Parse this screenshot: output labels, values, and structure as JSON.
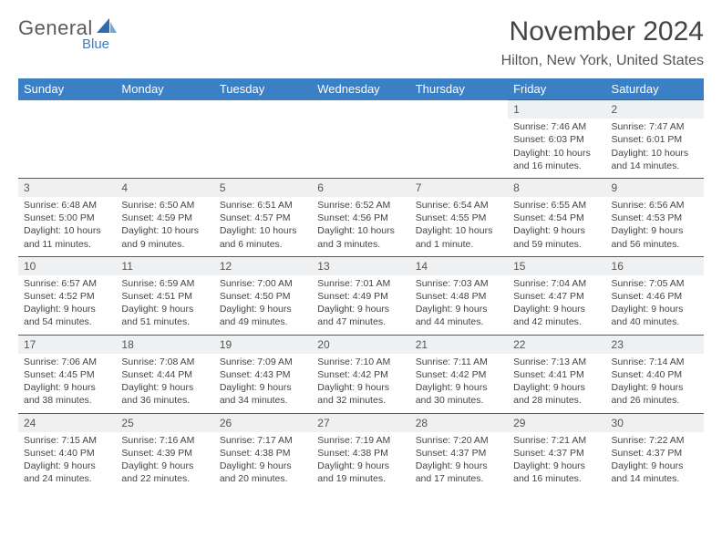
{
  "logo": {
    "text_general": "General",
    "text_blue": "Blue"
  },
  "title": "November 2024",
  "location": "Hilton, New York, United States",
  "header_bg": "#3b7fc4",
  "daynum_bg": "#eef0f2",
  "border_color": "#3b5f90",
  "weekdays": [
    "Sunday",
    "Monday",
    "Tuesday",
    "Wednesday",
    "Thursday",
    "Friday",
    "Saturday"
  ],
  "weeks": [
    [
      null,
      null,
      null,
      null,
      null,
      {
        "n": "1",
        "sunrise": "Sunrise: 7:46 AM",
        "sunset": "Sunset: 6:03 PM",
        "daylight": "Daylight: 10 hours and 16 minutes."
      },
      {
        "n": "2",
        "sunrise": "Sunrise: 7:47 AM",
        "sunset": "Sunset: 6:01 PM",
        "daylight": "Daylight: 10 hours and 14 minutes."
      }
    ],
    [
      {
        "n": "3",
        "sunrise": "Sunrise: 6:48 AM",
        "sunset": "Sunset: 5:00 PM",
        "daylight": "Daylight: 10 hours and 11 minutes."
      },
      {
        "n": "4",
        "sunrise": "Sunrise: 6:50 AM",
        "sunset": "Sunset: 4:59 PM",
        "daylight": "Daylight: 10 hours and 9 minutes."
      },
      {
        "n": "5",
        "sunrise": "Sunrise: 6:51 AM",
        "sunset": "Sunset: 4:57 PM",
        "daylight": "Daylight: 10 hours and 6 minutes."
      },
      {
        "n": "6",
        "sunrise": "Sunrise: 6:52 AM",
        "sunset": "Sunset: 4:56 PM",
        "daylight": "Daylight: 10 hours and 3 minutes."
      },
      {
        "n": "7",
        "sunrise": "Sunrise: 6:54 AM",
        "sunset": "Sunset: 4:55 PM",
        "daylight": "Daylight: 10 hours and 1 minute."
      },
      {
        "n": "8",
        "sunrise": "Sunrise: 6:55 AM",
        "sunset": "Sunset: 4:54 PM",
        "daylight": "Daylight: 9 hours and 59 minutes."
      },
      {
        "n": "9",
        "sunrise": "Sunrise: 6:56 AM",
        "sunset": "Sunset: 4:53 PM",
        "daylight": "Daylight: 9 hours and 56 minutes."
      }
    ],
    [
      {
        "n": "10",
        "sunrise": "Sunrise: 6:57 AM",
        "sunset": "Sunset: 4:52 PM",
        "daylight": "Daylight: 9 hours and 54 minutes."
      },
      {
        "n": "11",
        "sunrise": "Sunrise: 6:59 AM",
        "sunset": "Sunset: 4:51 PM",
        "daylight": "Daylight: 9 hours and 51 minutes."
      },
      {
        "n": "12",
        "sunrise": "Sunrise: 7:00 AM",
        "sunset": "Sunset: 4:50 PM",
        "daylight": "Daylight: 9 hours and 49 minutes."
      },
      {
        "n": "13",
        "sunrise": "Sunrise: 7:01 AM",
        "sunset": "Sunset: 4:49 PM",
        "daylight": "Daylight: 9 hours and 47 minutes."
      },
      {
        "n": "14",
        "sunrise": "Sunrise: 7:03 AM",
        "sunset": "Sunset: 4:48 PM",
        "daylight": "Daylight: 9 hours and 44 minutes."
      },
      {
        "n": "15",
        "sunrise": "Sunrise: 7:04 AM",
        "sunset": "Sunset: 4:47 PM",
        "daylight": "Daylight: 9 hours and 42 minutes."
      },
      {
        "n": "16",
        "sunrise": "Sunrise: 7:05 AM",
        "sunset": "Sunset: 4:46 PM",
        "daylight": "Daylight: 9 hours and 40 minutes."
      }
    ],
    [
      {
        "n": "17",
        "sunrise": "Sunrise: 7:06 AM",
        "sunset": "Sunset: 4:45 PM",
        "daylight": "Daylight: 9 hours and 38 minutes."
      },
      {
        "n": "18",
        "sunrise": "Sunrise: 7:08 AM",
        "sunset": "Sunset: 4:44 PM",
        "daylight": "Daylight: 9 hours and 36 minutes."
      },
      {
        "n": "19",
        "sunrise": "Sunrise: 7:09 AM",
        "sunset": "Sunset: 4:43 PM",
        "daylight": "Daylight: 9 hours and 34 minutes."
      },
      {
        "n": "20",
        "sunrise": "Sunrise: 7:10 AM",
        "sunset": "Sunset: 4:42 PM",
        "daylight": "Daylight: 9 hours and 32 minutes."
      },
      {
        "n": "21",
        "sunrise": "Sunrise: 7:11 AM",
        "sunset": "Sunset: 4:42 PM",
        "daylight": "Daylight: 9 hours and 30 minutes."
      },
      {
        "n": "22",
        "sunrise": "Sunrise: 7:13 AM",
        "sunset": "Sunset: 4:41 PM",
        "daylight": "Daylight: 9 hours and 28 minutes."
      },
      {
        "n": "23",
        "sunrise": "Sunrise: 7:14 AM",
        "sunset": "Sunset: 4:40 PM",
        "daylight": "Daylight: 9 hours and 26 minutes."
      }
    ],
    [
      {
        "n": "24",
        "sunrise": "Sunrise: 7:15 AM",
        "sunset": "Sunset: 4:40 PM",
        "daylight": "Daylight: 9 hours and 24 minutes."
      },
      {
        "n": "25",
        "sunrise": "Sunrise: 7:16 AM",
        "sunset": "Sunset: 4:39 PM",
        "daylight": "Daylight: 9 hours and 22 minutes."
      },
      {
        "n": "26",
        "sunrise": "Sunrise: 7:17 AM",
        "sunset": "Sunset: 4:38 PM",
        "daylight": "Daylight: 9 hours and 20 minutes."
      },
      {
        "n": "27",
        "sunrise": "Sunrise: 7:19 AM",
        "sunset": "Sunset: 4:38 PM",
        "daylight": "Daylight: 9 hours and 19 minutes."
      },
      {
        "n": "28",
        "sunrise": "Sunrise: 7:20 AM",
        "sunset": "Sunset: 4:37 PM",
        "daylight": "Daylight: 9 hours and 17 minutes."
      },
      {
        "n": "29",
        "sunrise": "Sunrise: 7:21 AM",
        "sunset": "Sunset: 4:37 PM",
        "daylight": "Daylight: 9 hours and 16 minutes."
      },
      {
        "n": "30",
        "sunrise": "Sunrise: 7:22 AM",
        "sunset": "Sunset: 4:37 PM",
        "daylight": "Daylight: 9 hours and 14 minutes."
      }
    ]
  ]
}
